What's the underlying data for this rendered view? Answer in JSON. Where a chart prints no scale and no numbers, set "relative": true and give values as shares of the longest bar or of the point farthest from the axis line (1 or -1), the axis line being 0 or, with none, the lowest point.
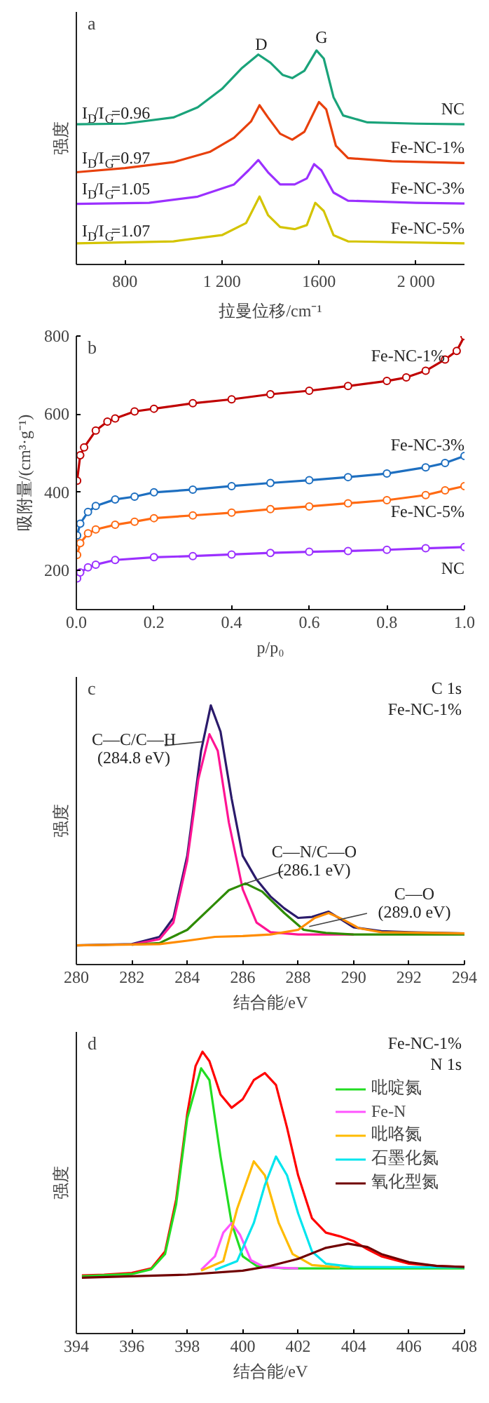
{
  "chart_data": [
    {
      "type": "line",
      "title": "a",
      "xlabel": "拉曼位移/cm⁻¹",
      "ylabel": "强度",
      "relative": true,
      "xlim": [
        600,
        2200
      ],
      "xticks": [
        800,
        {
          "value": 1200,
          "label": "1 200"
        },
        1600,
        {
          "value": 2000,
          "label": "2 000"
        }
      ],
      "series": [
        {
          "name": "NC",
          "color": "#1aa37a",
          "x": [
            600,
            800,
            1000,
            1100,
            1200,
            1280,
            1350,
            1400,
            1450,
            1490,
            1540,
            1590,
            1620,
            1660,
            1700,
            1800,
            2000,
            2200
          ],
          "values": [
            0.655,
            0.658,
            0.687,
            0.734,
            0.82,
            0.915,
            0.981,
            0.943,
            0.886,
            0.871,
            0.905,
            1.0,
            0.962,
            0.782,
            0.696,
            0.664,
            0.658,
            0.655
          ]
        },
        {
          "name": "Fe-NC-1%",
          "color": "#e8400c",
          "x": [
            600,
            800,
            1000,
            1150,
            1250,
            1320,
            1355,
            1390,
            1440,
            1490,
            1540,
            1600,
            1630,
            1670,
            1720,
            1900,
            2200
          ],
          "values": [
            0.431,
            0.45,
            0.478,
            0.526,
            0.592,
            0.668,
            0.744,
            0.687,
            0.611,
            0.583,
            0.62,
            0.759,
            0.725,
            0.554,
            0.497,
            0.482,
            0.474
          ]
        },
        {
          "name": "Fe-NC-3%",
          "color": "#9b30ff",
          "x": [
            600,
            900,
            1100,
            1250,
            1310,
            1350,
            1390,
            1440,
            1500,
            1550,
            1580,
            1610,
            1660,
            1720,
            2000,
            2200
          ],
          "values": [
            0.283,
            0.288,
            0.317,
            0.374,
            0.44,
            0.488,
            0.431,
            0.374,
            0.374,
            0.402,
            0.469,
            0.44,
            0.336,
            0.298,
            0.288,
            0.285
          ]
        },
        {
          "name": "Fe-NC-5%",
          "color": "#d4c400",
          "x": [
            600,
            1000,
            1200,
            1300,
            1355,
            1390,
            1440,
            1500,
            1550,
            1585,
            1620,
            1660,
            1720,
            2200
          ],
          "values": [
            0.099,
            0.108,
            0.137,
            0.194,
            0.317,
            0.231,
            0.175,
            0.165,
            0.184,
            0.288,
            0.25,
            0.137,
            0.108,
            0.099
          ]
        }
      ],
      "annotations": [
        "D",
        "G",
        "I$_{D}$/I$_{G}$=0.96",
        "I$_{D}$/I$_{G}$=0.97",
        "I$_{D}$/I$_{G}$=1.05",
        "I$_{D}$/I$_{G}$=1.07"
      ]
    },
    {
      "type": "line",
      "title": "b",
      "xlabel": "p/p₀",
      "ylabel": "吸附量/(cm³·g⁻¹)",
      "marker": "circle",
      "xlim": [
        0,
        1
      ],
      "xticks": [
        {
          "value": 0,
          "label": "0.0"
        },
        0.2,
        0.4,
        0.6,
        0.8,
        {
          "value": 1,
          "label": "1.0"
        }
      ],
      "ylim": [
        100,
        800
      ],
      "yticks": [
        200,
        400,
        600,
        800
      ],
      "series": [
        {
          "name": "Fe-NC-1%",
          "color": "#c00000",
          "x": [
            0.002,
            0.01,
            0.02,
            0.05,
            0.08,
            0.1,
            0.15,
            0.2,
            0.3,
            0.4,
            0.5,
            0.6,
            0.7,
            0.8,
            0.85,
            0.9,
            0.95,
            0.98,
            1.0
          ],
          "values": [
            430,
            495,
            515,
            558,
            581,
            589,
            607,
            614,
            628,
            638,
            651,
            660,
            672,
            685,
            694,
            711,
            740,
            762,
            800
          ]
        },
        {
          "name": "Fe-NC-3%",
          "color": "#1e6fc0",
          "x": [
            0.002,
            0.01,
            0.03,
            0.05,
            0.1,
            0.15,
            0.2,
            0.3,
            0.4,
            0.5,
            0.6,
            0.7,
            0.8,
            0.9,
            0.95,
            1.0
          ],
          "values": [
            290,
            320,
            350,
            365,
            382,
            389,
            400,
            407,
            416,
            424,
            431,
            439,
            448,
            464,
            475,
            493
          ]
        },
        {
          "name": "Fe-NC-5%",
          "color": "#ff6a13",
          "x": [
            0.002,
            0.01,
            0.03,
            0.05,
            0.1,
            0.15,
            0.2,
            0.3,
            0.4,
            0.5,
            0.6,
            0.7,
            0.8,
            0.9,
            0.95,
            1.0
          ],
          "values": [
            240,
            270,
            295,
            305,
            317,
            325,
            334,
            341,
            348,
            357,
            364,
            372,
            380,
            393,
            405,
            416
          ]
        },
        {
          "name": "NC",
          "color": "#9b30ff",
          "x": [
            0.002,
            0.01,
            0.03,
            0.05,
            0.1,
            0.2,
            0.3,
            0.4,
            0.5,
            0.6,
            0.7,
            0.8,
            0.9,
            1.0
          ],
          "values": [
            180,
            195,
            208,
            215,
            227,
            234,
            237,
            241,
            245,
            248,
            250,
            253,
            257,
            260
          ]
        }
      ]
    },
    {
      "type": "line",
      "title": "c",
      "xlabel": "结合能/eV",
      "ylabel": "强度",
      "relative": true,
      "xlim": [
        280,
        294
      ],
      "xticks": [
        280,
        282,
        284,
        286,
        288,
        290,
        292,
        294
      ],
      "series": [
        {
          "color": "#2b1b6b",
          "x": [
            280,
            282,
            283,
            283.5,
            284,
            284.5,
            284.85,
            285.2,
            285.6,
            286,
            286.5,
            287,
            287.5,
            288,
            288.5,
            289.1,
            289.6,
            290,
            291,
            292,
            294
          ],
          "values": [
            0.074,
            0.079,
            0.107,
            0.18,
            0.42,
            0.825,
            1.0,
            0.899,
            0.641,
            0.42,
            0.328,
            0.263,
            0.217,
            0.18,
            0.184,
            0.204,
            0.171,
            0.144,
            0.129,
            0.125,
            0.12
          ]
        },
        {
          "color": "#ff1493",
          "x": [
            282,
            283,
            283.5,
            284,
            284.4,
            284.8,
            285.1,
            285.5,
            286,
            286.5,
            287,
            288,
            290
          ],
          "values": [
            0.077,
            0.098,
            0.162,
            0.401,
            0.715,
            0.889,
            0.825,
            0.549,
            0.291,
            0.162,
            0.125,
            0.116,
            0.116
          ]
        },
        {
          "color": "#2e8b00",
          "x": [
            282,
            283,
            284,
            285,
            285.5,
            286.1,
            286.7,
            287.5,
            288.2,
            289,
            290,
            294
          ],
          "values": [
            0.077,
            0.083,
            0.134,
            0.236,
            0.287,
            0.313,
            0.282,
            0.199,
            0.134,
            0.122,
            0.116,
            0.116
          ]
        },
        {
          "color": "#ff8c00",
          "x": [
            280,
            283,
            284,
            285,
            286,
            287,
            288,
            288.6,
            289.1,
            289.6,
            290.2,
            291,
            294
          ],
          "values": [
            0.074,
            0.079,
            0.092,
            0.107,
            0.11,
            0.116,
            0.134,
            0.18,
            0.199,
            0.175,
            0.14,
            0.125,
            0.12
          ]
        }
      ],
      "annotations": [
        "C 1s",
        "Fe-NC-1%",
        {
          "text": "C—C/C—H\n(284.8 eV)",
          "x": 284.55,
          "y": 0.86
        },
        {
          "text": "C—N/C—O\n(286.1 eV)",
          "x": 286.1,
          "y": 0.313
        },
        {
          "text": "C—O\n(289.0 eV)",
          "x": 288.4,
          "y": 0.147
        }
      ]
    },
    {
      "type": "line",
      "title": "d",
      "xlabel": "结合能/eV",
      "ylabel": "强度",
      "relative": true,
      "legend": "top right",
      "xlim": [
        394,
        408
      ],
      "xticks": [
        394,
        396,
        398,
        400,
        402,
        404,
        406,
        408
      ],
      "series": [
        {
          "color": "#ff0000",
          "x": [
            394.2,
            395,
            396,
            396.7,
            397.2,
            397.6,
            398,
            398.3,
            398.55,
            398.8,
            399.2,
            399.6,
            400,
            400.4,
            400.8,
            401.2,
            401.6,
            402,
            402.5,
            403,
            403.5,
            404,
            404.5,
            405,
            406,
            407,
            408
          ],
          "values": [
            0.206,
            0.209,
            0.215,
            0.231,
            0.291,
            0.476,
            0.78,
            0.949,
            1.0,
            0.966,
            0.848,
            0.801,
            0.831,
            0.899,
            0.924,
            0.882,
            0.73,
            0.561,
            0.409,
            0.358,
            0.345,
            0.328,
            0.299,
            0.274,
            0.248,
            0.24,
            0.236
          ]
        },
        {
          "name": "吡啶氮",
          "color": "#22dd22",
          "x": [
            394.2,
            396,
            396.7,
            397.2,
            397.6,
            398,
            398.5,
            398.8,
            399.2,
            399.6,
            400,
            400.5,
            401.5,
            408
          ],
          "values": [
            0.203,
            0.211,
            0.228,
            0.282,
            0.459,
            0.764,
            0.941,
            0.899,
            0.628,
            0.392,
            0.274,
            0.24,
            0.231,
            0.231
          ]
        },
        {
          "name": "Fe-N",
          "color": "#ff55ff",
          "x": [
            398.5,
            399,
            399.3,
            399.6,
            399.9,
            400.3,
            400.8,
            402
          ],
          "values": [
            0.226,
            0.274,
            0.358,
            0.392,
            0.351,
            0.26,
            0.235,
            0.231
          ]
        },
        {
          "name": "吡咯氮",
          "color": "#ffbb00",
          "x": [
            398.5,
            399.3,
            399.8,
            400.4,
            400.8,
            401.3,
            401.8,
            402.5,
            403.5
          ],
          "values": [
            0.223,
            0.257,
            0.443,
            0.611,
            0.561,
            0.392,
            0.282,
            0.243,
            0.235
          ]
        },
        {
          "name": "石墨化氮",
          "color": "#00e5ee",
          "x": [
            399,
            399.8,
            400.4,
            400.8,
            401.2,
            401.6,
            402,
            402.5,
            403,
            404,
            408
          ],
          "values": [
            0.226,
            0.257,
            0.392,
            0.527,
            0.628,
            0.561,
            0.426,
            0.291,
            0.248,
            0.236,
            0.235
          ]
        },
        {
          "name": "氧化型氮",
          "color": "#700000",
          "x": [
            394.2,
            398,
            400,
            401,
            402,
            403,
            403.8,
            404.5,
            405,
            406,
            407,
            408
          ],
          "values": [
            0.198,
            0.209,
            0.223,
            0.24,
            0.265,
            0.304,
            0.319,
            0.307,
            0.282,
            0.253,
            0.24,
            0.236
          ]
        }
      ],
      "annotations": [
        "Fe-NC-1%",
        "N 1s"
      ]
    }
  ]
}
